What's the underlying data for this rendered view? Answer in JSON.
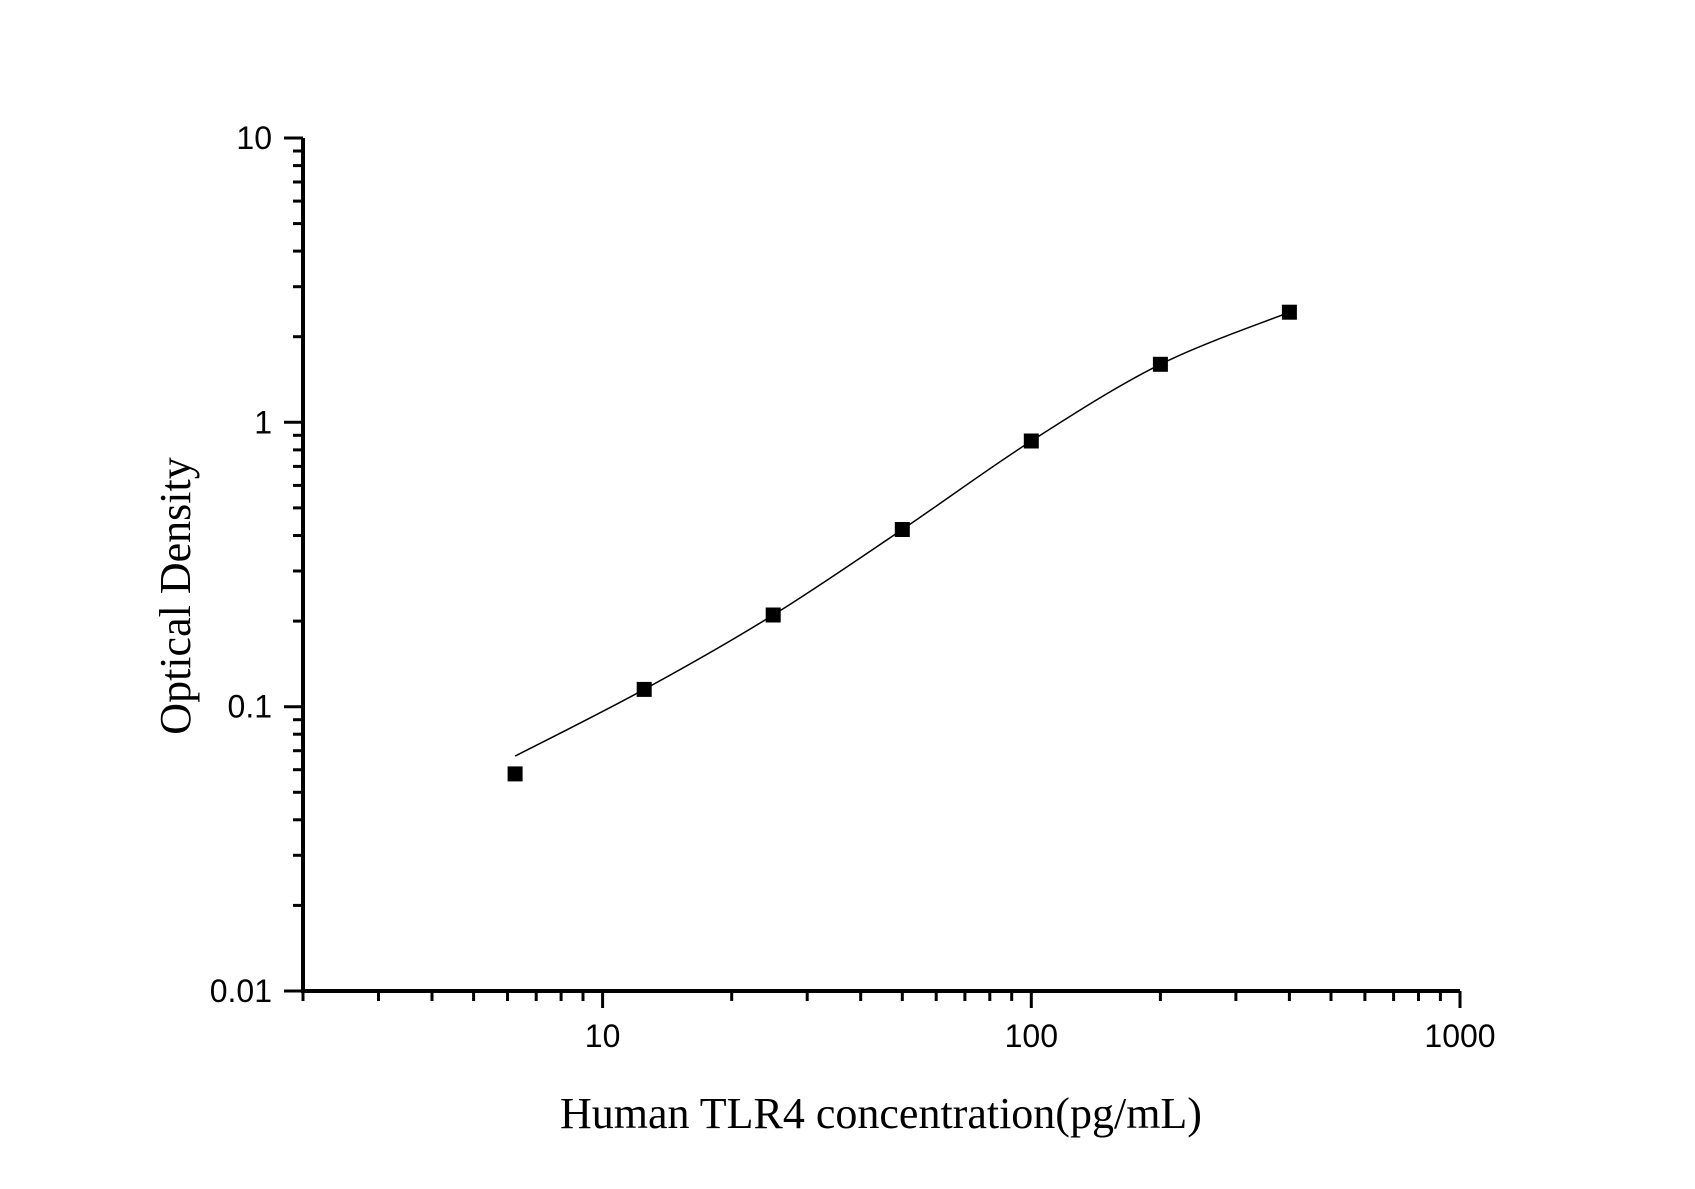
{
  "figure": {
    "background_color": "#ffffff",
    "foreground_color": "#000000"
  },
  "chart_data": {
    "type": "scatter",
    "title": "",
    "xlabel": "Human TLR4 concentration(pg/mL)",
    "ylabel": "Optical Density",
    "x_scale": "log",
    "y_scale": "log",
    "xlim": [
      2,
      1000
    ],
    "ylim": [
      0.01,
      10
    ],
    "x_major_ticks": [
      10,
      100,
      1000
    ],
    "x_major_tick_labels": [
      "10",
      "100",
      "1000"
    ],
    "y_major_ticks": [
      0.01,
      0.1,
      1,
      10
    ],
    "y_major_tick_labels": [
      "0.01",
      "0.1",
      "1",
      "10"
    ],
    "grid": false,
    "legend": false,
    "series": [
      {
        "name": "standard-curve-points",
        "marker": "filled-square",
        "color": "#000000",
        "x": [
          6.25,
          12.5,
          25,
          50,
          100,
          200,
          400
        ],
        "y": [
          0.058,
          0.115,
          0.21,
          0.42,
          0.86,
          1.6,
          2.44
        ]
      }
    ],
    "fit_curve": {
      "name": "fitted-curve",
      "color": "#000000",
      "x": [
        6.25,
        12.5,
        25,
        50,
        100,
        200,
        400
      ],
      "y": [
        0.067,
        0.115,
        0.21,
        0.42,
        0.86,
        1.6,
        2.44
      ]
    }
  }
}
